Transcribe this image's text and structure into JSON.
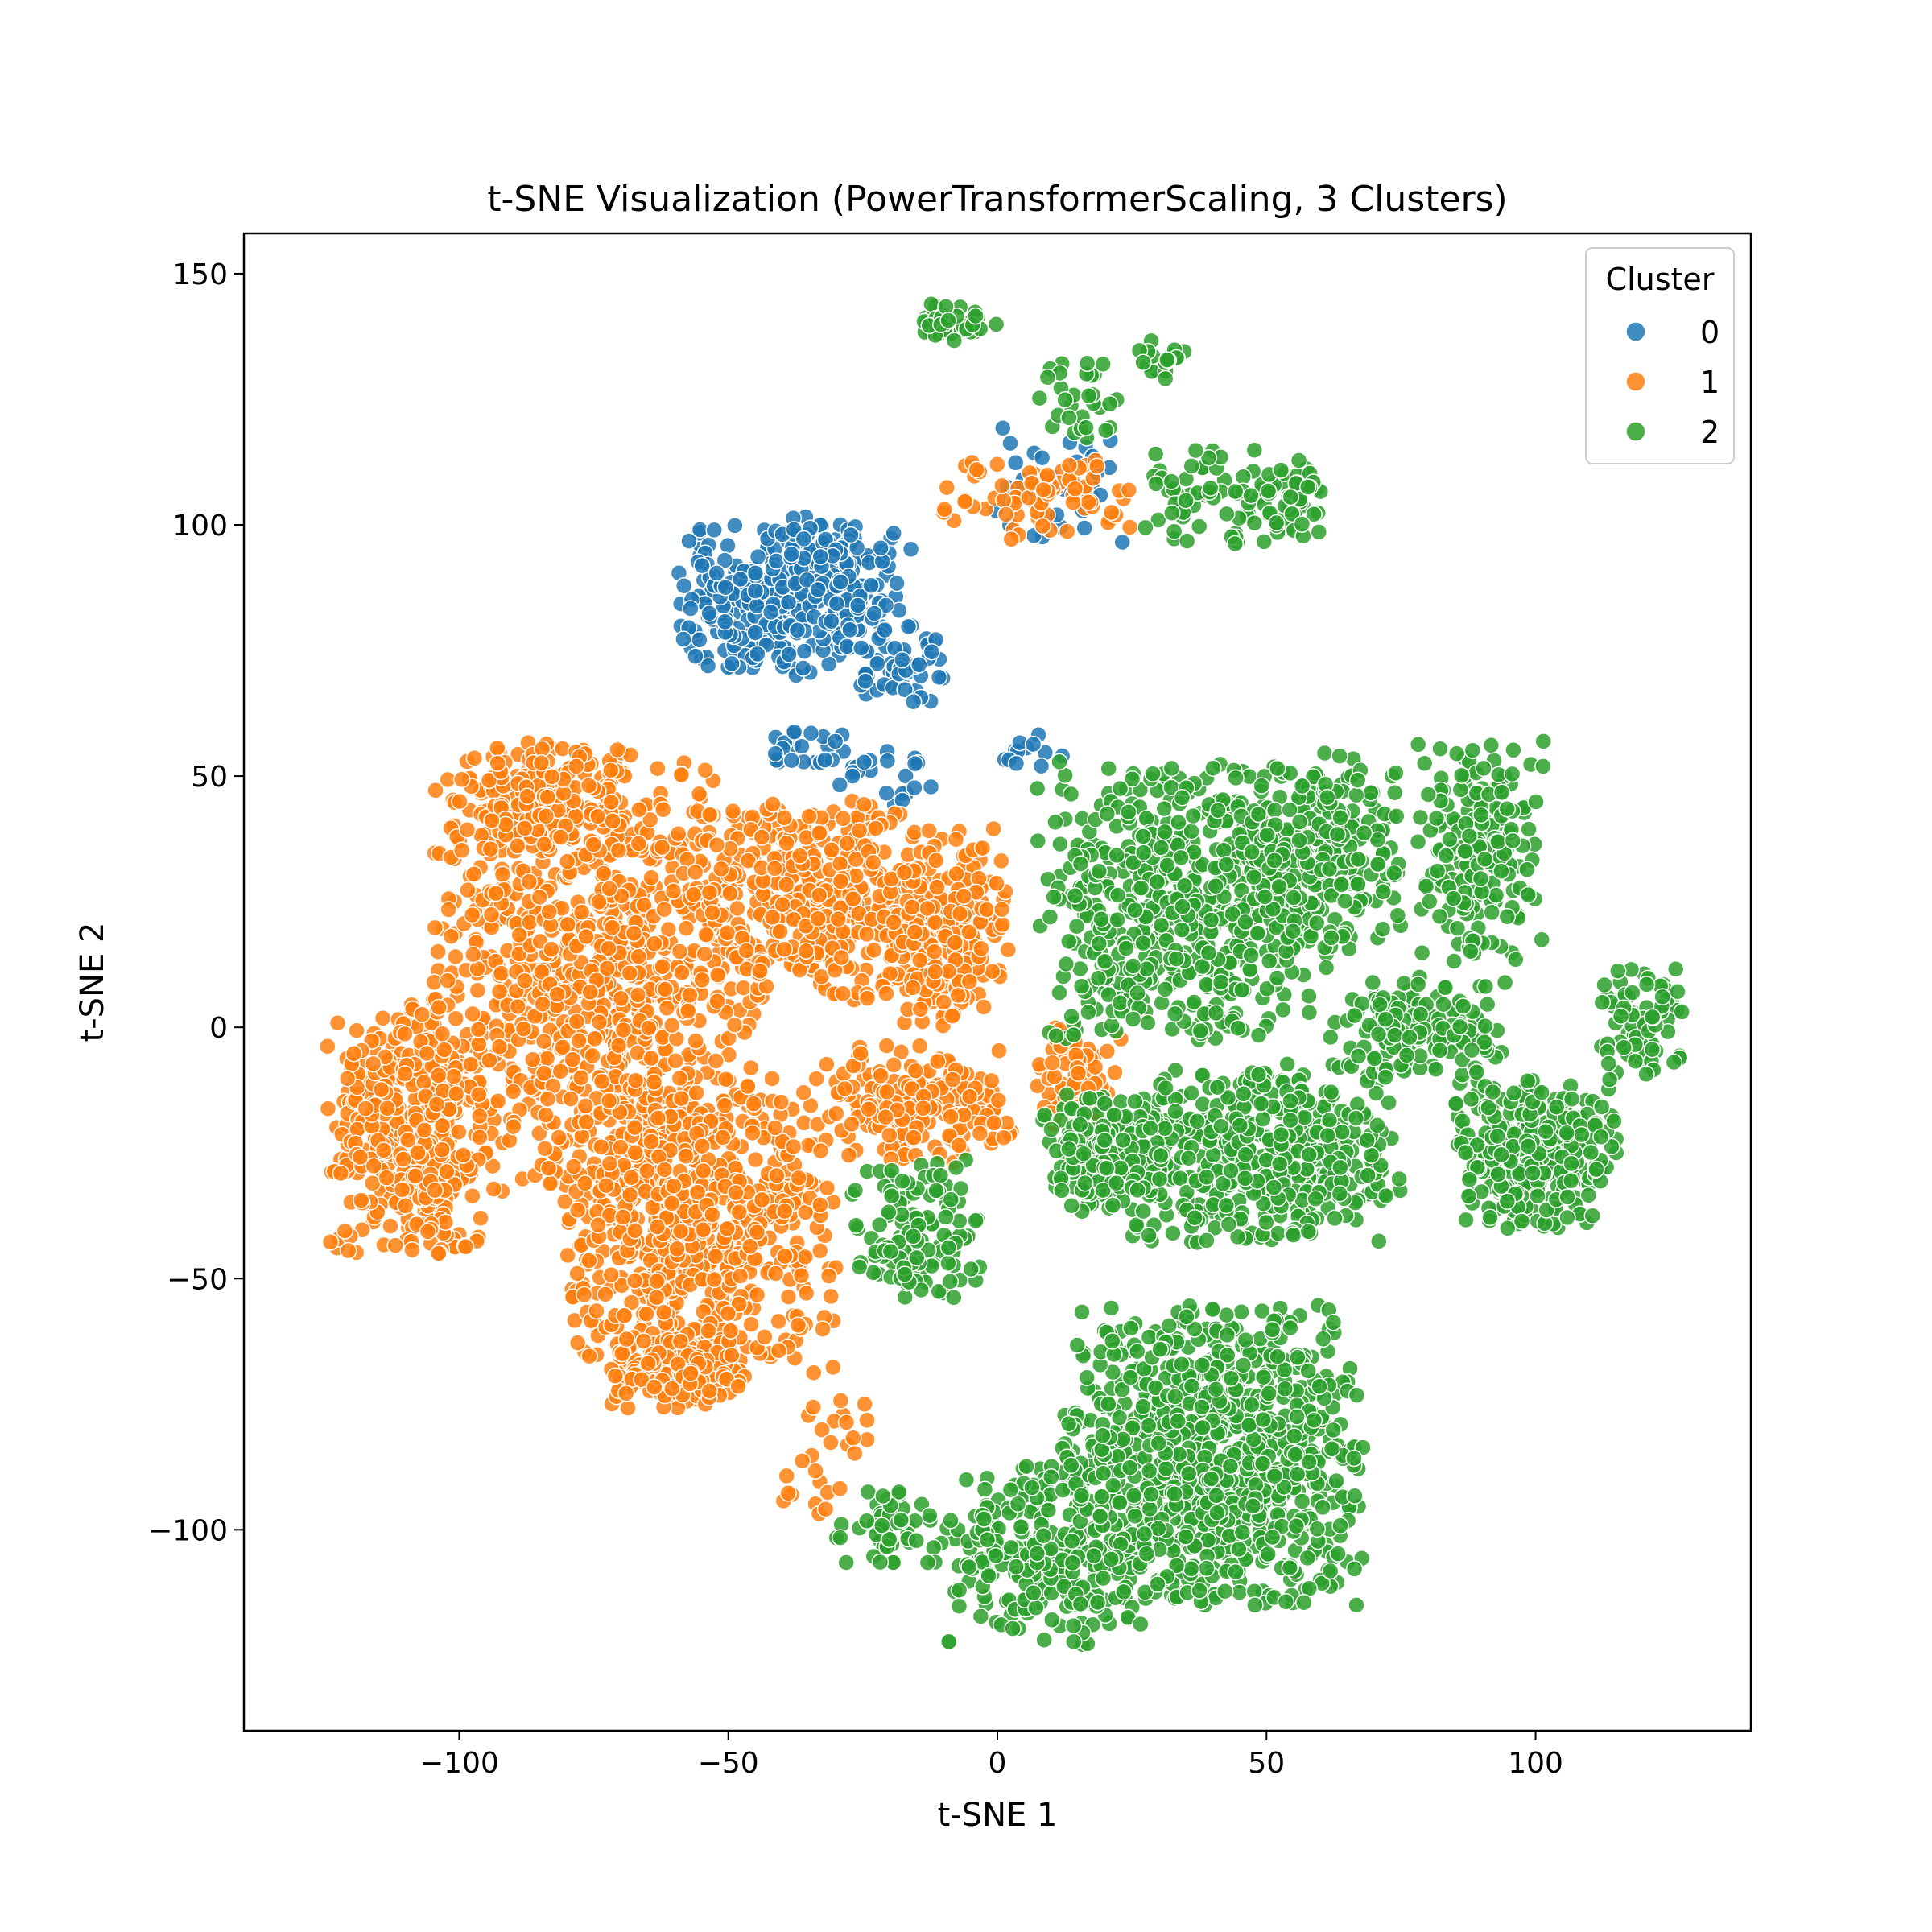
{
  "chart_data": {
    "type": "scatter",
    "title": "t-SNE Visualization (PowerTransformerScaling, 3 Clusters)",
    "xlabel": "t-SNE 1",
    "ylabel": "t-SNE 2",
    "xlim": [
      -140,
      140
    ],
    "ylim": [
      -140,
      158
    ],
    "xticks": [
      {
        "value": -100,
        "label": "−100"
      },
      {
        "value": -50,
        "label": "−50"
      },
      {
        "value": 0,
        "label": "0"
      },
      {
        "value": 50,
        "label": "50"
      },
      {
        "value": 100,
        "label": "100"
      }
    ],
    "yticks": [
      {
        "value": -100,
        "label": "−100"
      },
      {
        "value": -50,
        "label": "−50"
      },
      {
        "value": 0,
        "label": "0"
      },
      {
        "value": 50,
        "label": "50"
      },
      {
        "value": 100,
        "label": "100"
      },
      {
        "value": 150,
        "label": "150"
      }
    ],
    "grid": false,
    "legend": {
      "title": "Cluster",
      "position": "top-right"
    },
    "series": [
      {
        "name": "0",
        "color": "#1f77b4",
        "blobs": [
          {
            "cx": -42,
            "cy": 85,
            "rx": 18,
            "ry": 15,
            "n": 260
          },
          {
            "cx": -28,
            "cy": 88,
            "rx": 12,
            "ry": 14,
            "n": 120
          },
          {
            "cx": -18,
            "cy": 72,
            "rx": 8,
            "ry": 8,
            "n": 60
          },
          {
            "cx": -35,
            "cy": 55,
            "rx": 10,
            "ry": 6,
            "n": 25
          },
          {
            "cx": -20,
            "cy": 50,
            "rx": 10,
            "ry": 6,
            "n": 20
          },
          {
            "cx": 5,
            "cy": 55,
            "rx": 10,
            "ry": 4,
            "n": 12
          },
          {
            "cx": 12,
            "cy": 108,
            "rx": 14,
            "ry": 12,
            "n": 40
          }
        ]
      },
      {
        "name": "1",
        "color": "#ff7f0e",
        "blobs": [
          {
            "cx": -75,
            "cy": 10,
            "rx": 30,
            "ry": 45,
            "n": 900
          },
          {
            "cx": -55,
            "cy": -40,
            "rx": 25,
            "ry": 30,
            "n": 700
          },
          {
            "cx": -110,
            "cy": -20,
            "rx": 15,
            "ry": 25,
            "n": 400
          },
          {
            "cx": -85,
            "cy": 45,
            "rx": 15,
            "ry": 12,
            "n": 200
          },
          {
            "cx": -35,
            "cy": 25,
            "rx": 20,
            "ry": 20,
            "n": 400
          },
          {
            "cx": -10,
            "cy": 20,
            "rx": 12,
            "ry": 20,
            "n": 250
          },
          {
            "cx": -15,
            "cy": -15,
            "rx": 18,
            "ry": 12,
            "n": 200
          },
          {
            "cx": 15,
            "cy": -10,
            "rx": 8,
            "ry": 10,
            "n": 60
          },
          {
            "cx": -60,
            "cy": -68,
            "rx": 12,
            "ry": 8,
            "n": 150
          },
          {
            "cx": 8,
            "cy": 105,
            "rx": 18,
            "ry": 8,
            "n": 80
          },
          {
            "cx": -30,
            "cy": -80,
            "rx": 6,
            "ry": 6,
            "n": 15
          },
          {
            "cx": -35,
            "cy": -92,
            "rx": 6,
            "ry": 6,
            "n": 12
          }
        ]
      },
      {
        "name": "2",
        "color": "#2ca02c",
        "blobs": [
          {
            "cx": 35,
            "cy": 25,
            "rx": 28,
            "ry": 28,
            "n": 600
          },
          {
            "cx": 60,
            "cy": 35,
            "rx": 15,
            "ry": 20,
            "n": 250
          },
          {
            "cx": 90,
            "cy": 35,
            "rx": 12,
            "ry": 22,
            "n": 200
          },
          {
            "cx": 50,
            "cy": -25,
            "rx": 25,
            "ry": 18,
            "n": 450
          },
          {
            "cx": 100,
            "cy": -25,
            "rx": 15,
            "ry": 15,
            "n": 300
          },
          {
            "cx": 80,
            "cy": 0,
            "rx": 15,
            "ry": 10,
            "n": 150
          },
          {
            "cx": 120,
            "cy": 0,
            "rx": 8,
            "ry": 12,
            "n": 80
          },
          {
            "cx": 20,
            "cy": -25,
            "rx": 12,
            "ry": 12,
            "n": 200
          },
          {
            "cx": -15,
            "cy": -40,
            "rx": 12,
            "ry": 14,
            "n": 120
          },
          {
            "cx": 40,
            "cy": -85,
            "rx": 28,
            "ry": 30,
            "n": 900
          },
          {
            "cx": 10,
            "cy": -105,
            "rx": 20,
            "ry": 18,
            "n": 250
          },
          {
            "cx": -20,
            "cy": -100,
            "rx": 10,
            "ry": 8,
            "n": 50
          },
          {
            "cx": -8,
            "cy": 140,
            "rx": 8,
            "ry": 4,
            "n": 40
          },
          {
            "cx": 30,
            "cy": 133,
            "rx": 5,
            "ry": 4,
            "n": 20
          },
          {
            "cx": 40,
            "cy": 105,
            "rx": 14,
            "ry": 10,
            "n": 70
          },
          {
            "cx": 55,
            "cy": 105,
            "rx": 6,
            "ry": 8,
            "n": 40
          },
          {
            "cx": 15,
            "cy": 125,
            "rx": 8,
            "ry": 8,
            "n": 30
          }
        ]
      }
    ]
  }
}
